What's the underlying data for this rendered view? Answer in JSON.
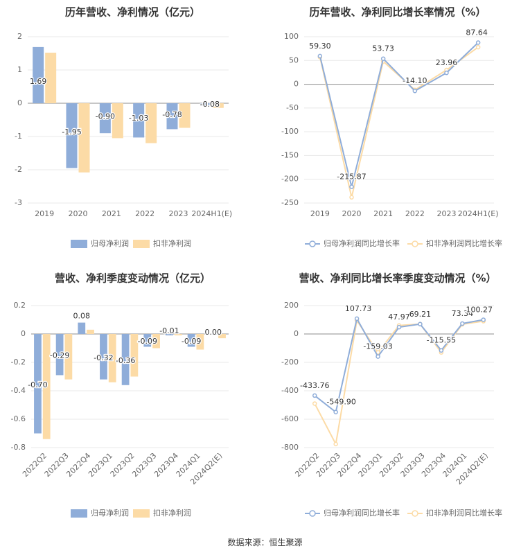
{
  "source": "数据来源：恒生聚源",
  "colors": {
    "net": "#8fadd9",
    "deducted": "#fcdba6",
    "grid": "#e8e8e8",
    "zero": "#8c8c8c",
    "axis_text": "#666666",
    "label_text": "#333333",
    "title_text": "#333333"
  },
  "chart_data": [
    {
      "type": "bar",
      "title": "历年营收、净利情况（亿元）",
      "categories": [
        "2019",
        "2020",
        "2021",
        "2022",
        "2023",
        "2024H1(E)"
      ],
      "series": [
        {
          "name": "归母净利润",
          "values": [
            1.69,
            -1.95,
            -0.9,
            -1.03,
            -0.78,
            -0.08
          ],
          "labels": [
            "1.69",
            "-1.95",
            "-0.90",
            "-1.03",
            "-0.78",
            "-0.08"
          ]
        },
        {
          "name": "扣非净利润",
          "values": [
            1.52,
            -2.08,
            -1.05,
            -1.2,
            -0.74,
            -0.14
          ]
        }
      ],
      "yticks": [
        "2",
        "1",
        "0",
        "-1",
        "-2",
        "-3"
      ],
      "ylim": [
        -3,
        2
      ],
      "legend": "bottom"
    },
    {
      "type": "line",
      "title": "历年营收、净利同比增长率情况（%）",
      "categories": [
        "2019",
        "2020",
        "2021",
        "2022",
        "2023",
        "2024H1(E)"
      ],
      "series": [
        {
          "name": "归母净利润同比增长率",
          "values": [
            59.3,
            -215.87,
            53.73,
            -14.1,
            23.96,
            87.64
          ],
          "labels": [
            "59.30",
            "-215.87",
            "53.73",
            "-14.10",
            "23.96",
            "87.64"
          ]
        },
        {
          "name": "扣非净利润同比增长率",
          "values": [
            57,
            -238,
            48,
            -12,
            30,
            78
          ]
        }
      ],
      "yticks": [
        "100",
        "50",
        "0",
        "-50",
        "-100",
        "-150",
        "-200",
        "-250"
      ],
      "ylim": [
        -250,
        100
      ],
      "legend": "bottom"
    },
    {
      "type": "bar",
      "title": "营收、净利季度变动情况（亿元）",
      "categories": [
        "2022Q2",
        "2022Q3",
        "2022Q4",
        "2023Q1",
        "2023Q2",
        "2023Q3",
        "2023Q4",
        "2024Q1",
        "2024Q2(E)"
      ],
      "series": [
        {
          "name": "归母净利润",
          "values": [
            -0.7,
            -0.29,
            0.08,
            -0.32,
            -0.36,
            -0.09,
            -0.01,
            -0.09,
            0.0
          ],
          "labels": [
            "-0.70",
            "-0.29",
            "0.08",
            "-0.32",
            "-0.36",
            "-0.09",
            "-0.01",
            "-0.09",
            "0.00"
          ]
        },
        {
          "name": "扣非净利润",
          "values": [
            -0.74,
            -0.32,
            0.03,
            -0.34,
            -0.3,
            -0.1,
            -0.01,
            -0.11,
            -0.03
          ]
        }
      ],
      "yticks": [
        "0.2",
        "0",
        "-0.2",
        "-0.4",
        "-0.6",
        "-0.8"
      ],
      "ylim": [
        -0.8,
        0.2
      ],
      "legend": "bottom"
    },
    {
      "type": "line",
      "title": "营收、净利同比增长率季度变动情况（%）",
      "categories": [
        "2022Q2",
        "2022Q3",
        "2022Q4",
        "2023Q1",
        "2023Q2",
        "2023Q3",
        "2023Q4",
        "2024Q1",
        "2024Q2(E)"
      ],
      "series": [
        {
          "name": "归母净利润同比增长率",
          "values": [
            -433.76,
            -549.9,
            107.73,
            -159.03,
            47.97,
            69.21,
            -115.55,
            73.34,
            100.27
          ],
          "labels": [
            "-433.76",
            "-549.90",
            "107.73",
            "-159.03",
            "47.97",
            "69.21",
            "-115.55",
            "73.34",
            "100.27"
          ]
        },
        {
          "name": "扣非净利润同比增长率",
          "values": [
            -490,
            -775,
            95,
            -130,
            60,
            70,
            -130,
            68,
            90
          ]
        }
      ],
      "yticks": [
        "200",
        "0",
        "-200",
        "-400",
        "-600",
        "-800"
      ],
      "ylim": [
        -800,
        200
      ],
      "legend": "bottom"
    }
  ]
}
